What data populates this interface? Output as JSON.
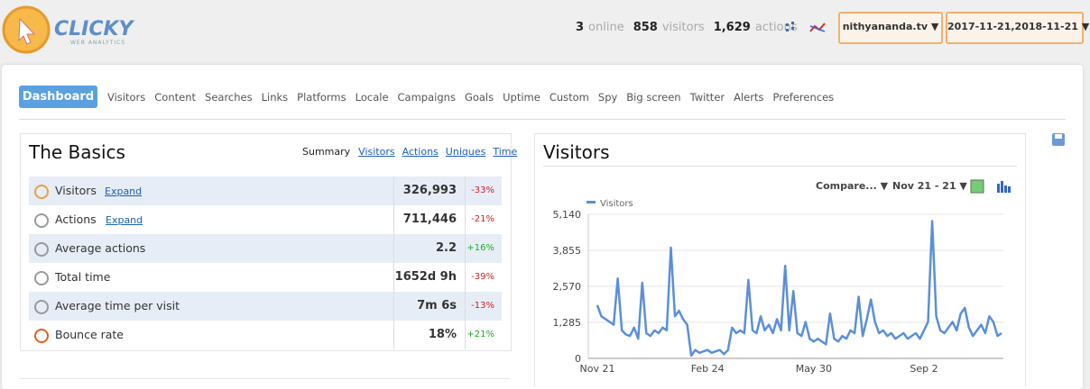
{
  "header": {
    "logo": "CLICKY",
    "logo_sub": "WEB ANALYTICS",
    "stats": [
      {
        "value": "3",
        "label": "online"
      },
      {
        "value": "858",
        "label": "visitors"
      },
      {
        "value": "1,629",
        "label": "actions"
      }
    ],
    "site": "nithyananda.tv ▼",
    "date_range": "2017-11-21,2018-11-21 ▼"
  },
  "nav": {
    "active": "Dashboard",
    "items": [
      "Visitors",
      "Content",
      "Searches",
      "Links",
      "Platforms",
      "Locale",
      "Campaigns",
      "Goals",
      "Uptime",
      "Custom",
      "Spy",
      "Big screen",
      "Twitter",
      "Alerts",
      "Preferences"
    ]
  },
  "basics": {
    "title": "The Basics",
    "tabs": [
      "Summary",
      "Visitors",
      "Actions",
      "Uniques",
      "Time"
    ],
    "rows": [
      {
        "label": "Visitors",
        "link": "Expand",
        "value": "326,993",
        "change": "-33%"
      },
      {
        "label": "Actions",
        "link": "Expand",
        "value": "711,446",
        "change": "-21%"
      },
      {
        "label": "Average actions",
        "value": "2.2",
        "change": "+16%"
      },
      {
        "label": "Total time",
        "value": "1652d 9h",
        "change": "-39%"
      },
      {
        "label": "Average time per visit",
        "value": "7m 6s",
        "change": "-13%"
      },
      {
        "label": "Bounce rate",
        "value": "18%",
        "change": "+21%"
      }
    ]
  },
  "visitors_panel": {
    "title": "Visitors",
    "compare": "Compare... ▼",
    "range": "Nov 21 - 21 ▼"
  },
  "chart_data": {
    "type": "line",
    "grid": true,
    "categories": [
      "Nov 21",
      null,
      null,
      null,
      null,
      null,
      null,
      null,
      null,
      null,
      null,
      null,
      null,
      null,
      null,
      null,
      null,
      null,
      null,
      null,
      null,
      null,
      null,
      null,
      null,
      null,
      null,
      "Feb 24",
      null,
      null,
      null,
      null,
      null,
      null,
      null,
      null,
      null,
      null,
      null,
      null,
      null,
      null,
      null,
      null,
      null,
      null,
      null,
      null,
      null,
      null,
      null,
      null,
      null,
      "May 30",
      null,
      null,
      null,
      null,
      null,
      null,
      null,
      null,
      null,
      null,
      null,
      null,
      null,
      null,
      null,
      null,
      null,
      null,
      null,
      null,
      null,
      null,
      null,
      null,
      null,
      null,
      "Sep 2",
      null,
      null,
      null,
      null,
      null,
      null,
      null,
      null,
      null,
      null,
      null,
      null,
      null,
      null,
      null,
      null,
      null,
      null,
      null
    ],
    "series": [
      {
        "name": "Visitors",
        "color": "#5b8fd6",
        "values": [
          1900,
          1500,
          1400,
          1300,
          1200,
          2850,
          1000,
          850,
          800,
          1100,
          700,
          2700,
          900,
          800,
          1000,
          900,
          1100,
          1000,
          3950,
          1500,
          1700,
          1400,
          1200,
          100,
          300,
          200,
          250,
          300,
          200,
          250,
          300,
          150,
          300,
          1100,
          900,
          1000,
          900,
          2800,
          1000,
          900,
          1500,
          1000,
          1200,
          900,
          1400,
          1000,
          3300,
          1000,
          2400,
          900,
          800,
          1300,
          700,
          600,
          700,
          600,
          500,
          1600,
          700,
          600,
          800,
          700,
          1000,
          900,
          2200,
          800,
          1400,
          2100,
          1300,
          900,
          1000,
          800,
          900,
          700,
          800,
          900,
          700,
          800,
          900,
          700,
          1000,
          1300,
          4900,
          1500,
          1000,
          900,
          1100,
          1300,
          1000,
          1600,
          1800,
          1100,
          800,
          1000,
          1200,
          900,
          1500,
          1300,
          800,
          900
        ]
      }
    ],
    "ylim": [
      0,
      5140
    ],
    "yticks": [
      0,
      {
        "value": 1285,
        "label": "1,285"
      },
      {
        "value": 2570,
        "label": "2,570"
      },
      {
        "value": 3855,
        "label": "3,855"
      },
      {
        "value": 5140,
        "label": "5,140"
      }
    ]
  }
}
